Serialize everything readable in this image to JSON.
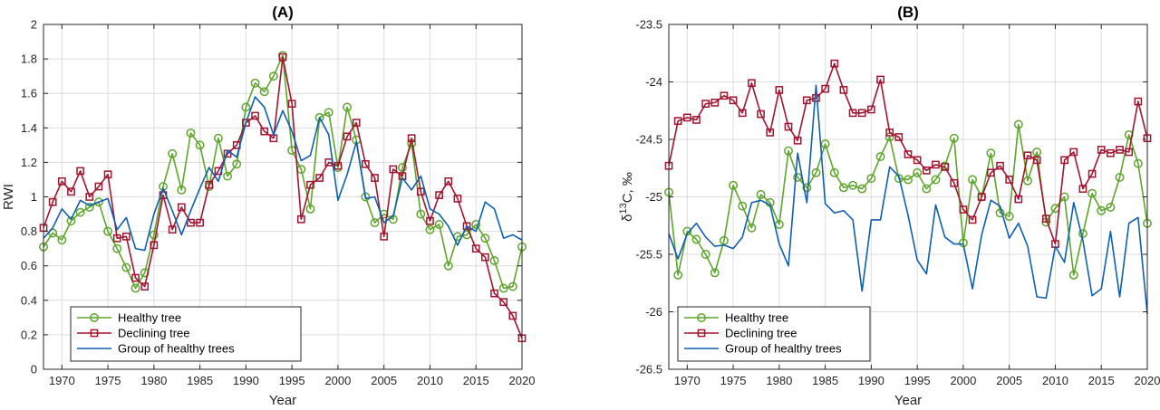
{
  "colors": {
    "healthy": "#5ea52c",
    "declining": "#a2142f",
    "group": "#0f5fb0"
  },
  "chart_data": [
    {
      "type": "line",
      "title": "(A)",
      "xlabel": "Year",
      "ylabel": "RWI",
      "xlim": [
        1968,
        2020
      ],
      "ylim": [
        0,
        2
      ],
      "grid": true,
      "legend_position": "bottom-left",
      "xticks": [
        1970,
        1975,
        1980,
        1985,
        1990,
        1995,
        2000,
        2005,
        2010,
        2015,
        2020
      ],
      "yticks": [
        0,
        0.2,
        0.4,
        0.6,
        0.8,
        1,
        1.2,
        1.4,
        1.6,
        1.8,
        2
      ],
      "ytick_labels": [
        "0",
        "0.2",
        "0.4",
        "0.6",
        "0.8",
        "1",
        "1.2",
        "1.4",
        "1.6",
        "1.8",
        "2"
      ],
      "x": [
        1968,
        1969,
        1970,
        1971,
        1972,
        1973,
        1974,
        1975,
        1976,
        1977,
        1978,
        1979,
        1980,
        1981,
        1982,
        1983,
        1984,
        1985,
        1986,
        1987,
        1988,
        1989,
        1990,
        1991,
        1992,
        1993,
        1994,
        1995,
        1996,
        1997,
        1998,
        1999,
        2000,
        2001,
        2002,
        2003,
        2004,
        2005,
        2006,
        2007,
        2008,
        2009,
        2010,
        2011,
        2012,
        2013,
        2014,
        2015,
        2016,
        2017,
        2018,
        2019,
        2020
      ],
      "series": [
        {
          "name": "Healthy tree",
          "color_key": "healthy",
          "marker": "circle",
          "values": [
            0.71,
            0.79,
            0.75,
            0.86,
            0.91,
            0.94,
            0.97,
            0.8,
            0.7,
            0.59,
            0.47,
            0.56,
            0.78,
            1.06,
            1.25,
            1.04,
            1.37,
            1.3,
            1.06,
            1.34,
            1.12,
            1.19,
            1.52,
            1.66,
            1.61,
            1.7,
            1.82,
            1.27,
            1.16,
            0.93,
            1.46,
            1.49,
            1.17,
            1.52,
            1.33,
            1.0,
            0.85,
            0.9,
            0.87,
            1.17,
            1.31,
            0.9,
            0.81,
            0.84,
            0.6,
            0.77,
            0.78,
            0.84,
            0.76,
            0.63,
            0.47,
            0.48,
            0.71
          ]
        },
        {
          "name": "Declining tree",
          "color_key": "declining",
          "marker": "square",
          "values": [
            0.82,
            0.97,
            1.09,
            1.03,
            1.15,
            1.0,
            1.06,
            1.13,
            0.76,
            0.77,
            0.53,
            0.48,
            0.72,
            1.01,
            0.81,
            0.94,
            0.85,
            0.85,
            1.07,
            1.15,
            1.25,
            1.3,
            1.43,
            1.47,
            1.38,
            1.34,
            1.81,
            1.54,
            0.87,
            1.07,
            1.11,
            1.2,
            1.18,
            1.35,
            1.43,
            1.19,
            1.11,
            0.77,
            1.16,
            1.12,
            1.34,
            1.03,
            0.86,
            1.01,
            1.09,
            0.99,
            0.83,
            0.7,
            0.65,
            0.44,
            0.39,
            0.31,
            0.18
          ]
        },
        {
          "name": "Group of healthy trees",
          "color_key": "group",
          "marker": "none",
          "values": [
            0.76,
            0.82,
            0.93,
            0.87,
            0.98,
            0.95,
            0.97,
            0.99,
            0.81,
            0.88,
            0.7,
            0.69,
            0.9,
            1.05,
            0.92,
            0.78,
            0.92,
            1.05,
            1.17,
            1.09,
            1.27,
            1.23,
            1.43,
            1.58,
            1.52,
            1.36,
            1.5,
            1.38,
            1.21,
            1.24,
            1.46,
            1.36,
            0.98,
            1.13,
            1.32,
            0.99,
            1.0,
            0.85,
            0.89,
            1.11,
            1.04,
            1.12,
            0.93,
            0.9,
            0.83,
            0.72,
            0.83,
            0.8,
            0.97,
            0.93,
            0.76,
            0.78,
            0.75
          ]
        }
      ]
    },
    {
      "type": "line",
      "title": "(B)",
      "xlabel": "Year",
      "ylabel_parts": [
        "δ",
        "13",
        "C, ‰"
      ],
      "xlim": [
        1968,
        2020
      ],
      "ylim": [
        -26.5,
        -23.5
      ],
      "grid": true,
      "legend_position": "bottom-left",
      "xticks": [
        1970,
        1975,
        1980,
        1985,
        1990,
        1995,
        2000,
        2005,
        2010,
        2015,
        2020
      ],
      "yticks": [
        -26.5,
        -26,
        -25.5,
        -25,
        -24.5,
        -24,
        -23.5
      ],
      "ytick_labels": [
        "-26.5",
        "-26",
        "-25.5",
        "-25",
        "-24.5",
        "-24",
        "-23.5"
      ],
      "x": [
        1968,
        1969,
        1970,
        1971,
        1972,
        1973,
        1974,
        1975,
        1976,
        1977,
        1978,
        1979,
        1980,
        1981,
        1982,
        1983,
        1984,
        1985,
        1986,
        1987,
        1988,
        1989,
        1990,
        1991,
        1992,
        1993,
        1994,
        1995,
        1996,
        1997,
        1998,
        1999,
        2000,
        2001,
        2002,
        2003,
        2004,
        2005,
        2006,
        2007,
        2008,
        2009,
        2010,
        2011,
        2012,
        2013,
        2014,
        2015,
        2016,
        2017,
        2018,
        2019,
        2020
      ],
      "series": [
        {
          "name": "Healthy tree",
          "color_key": "healthy",
          "marker": "circle",
          "values": [
            -24.96,
            -25.68,
            -25.3,
            -25.37,
            -25.5,
            -25.66,
            -25.38,
            -24.9,
            -25.08,
            -25.27,
            -24.98,
            -25.05,
            -25.24,
            -24.6,
            -24.83,
            -24.92,
            -24.79,
            -24.54,
            -24.79,
            -24.92,
            -24.9,
            -24.93,
            -24.84,
            -24.65,
            -24.48,
            -24.84,
            -24.85,
            -24.79,
            -24.93,
            -24.85,
            -24.73,
            -24.49,
            -25.4,
            -24.85,
            -25.0,
            -24.62,
            -25.14,
            -25.17,
            -24.37,
            -24.86,
            -24.61,
            -25.22,
            -25.1,
            -25.0,
            -25.68,
            -25.32,
            -24.97,
            -25.12,
            -25.09,
            -24.83,
            -24.46,
            -24.71,
            -25.23
          ]
        },
        {
          "name": "Declining tree",
          "color_key": "declining",
          "marker": "square",
          "values": [
            -24.73,
            -24.34,
            -24.31,
            -24.33,
            -24.19,
            -24.18,
            -24.12,
            -24.16,
            -24.27,
            -24.01,
            -24.28,
            -24.44,
            -24.07,
            -24.39,
            -24.51,
            -24.16,
            -24.14,
            -24.06,
            -23.84,
            -24.07,
            -24.27,
            -24.27,
            -24.24,
            -23.98,
            -24.44,
            -24.48,
            -24.63,
            -24.68,
            -24.77,
            -24.72,
            -24.74,
            -24.88,
            -25.11,
            -25.2,
            -25.0,
            -24.79,
            -24.73,
            -24.85,
            -25.02,
            -24.64,
            -24.68,
            -25.19,
            -25.41,
            -24.68,
            -24.61,
            -24.93,
            -24.8,
            -24.59,
            -24.62,
            -24.59,
            -24.61,
            -24.17,
            -24.49
          ]
        },
        {
          "name": "Group of healthy trees",
          "color_key": "group",
          "marker": "none",
          "values": [
            -25.32,
            -25.54,
            -25.32,
            -25.23,
            -25.35,
            -25.43,
            -25.42,
            -25.45,
            -25.35,
            -25.05,
            -25.03,
            -25.07,
            -25.41,
            -25.6,
            -24.62,
            -25.05,
            -24.03,
            -25.06,
            -25.14,
            -25.12,
            -25.2,
            -25.82,
            -25.2,
            -25.2,
            -24.74,
            -24.82,
            -25.16,
            -25.55,
            -25.67,
            -25.07,
            -25.35,
            -25.41,
            -25.41,
            -25.8,
            -25.33,
            -25.03,
            -25.08,
            -25.36,
            -25.23,
            -25.43,
            -25.87,
            -25.88,
            -25.43,
            -25.57,
            -25.05,
            -25.38,
            -25.86,
            -25.8,
            -25.3,
            -25.87,
            -25.23,
            -25.18,
            -26.02
          ]
        }
      ]
    }
  ]
}
